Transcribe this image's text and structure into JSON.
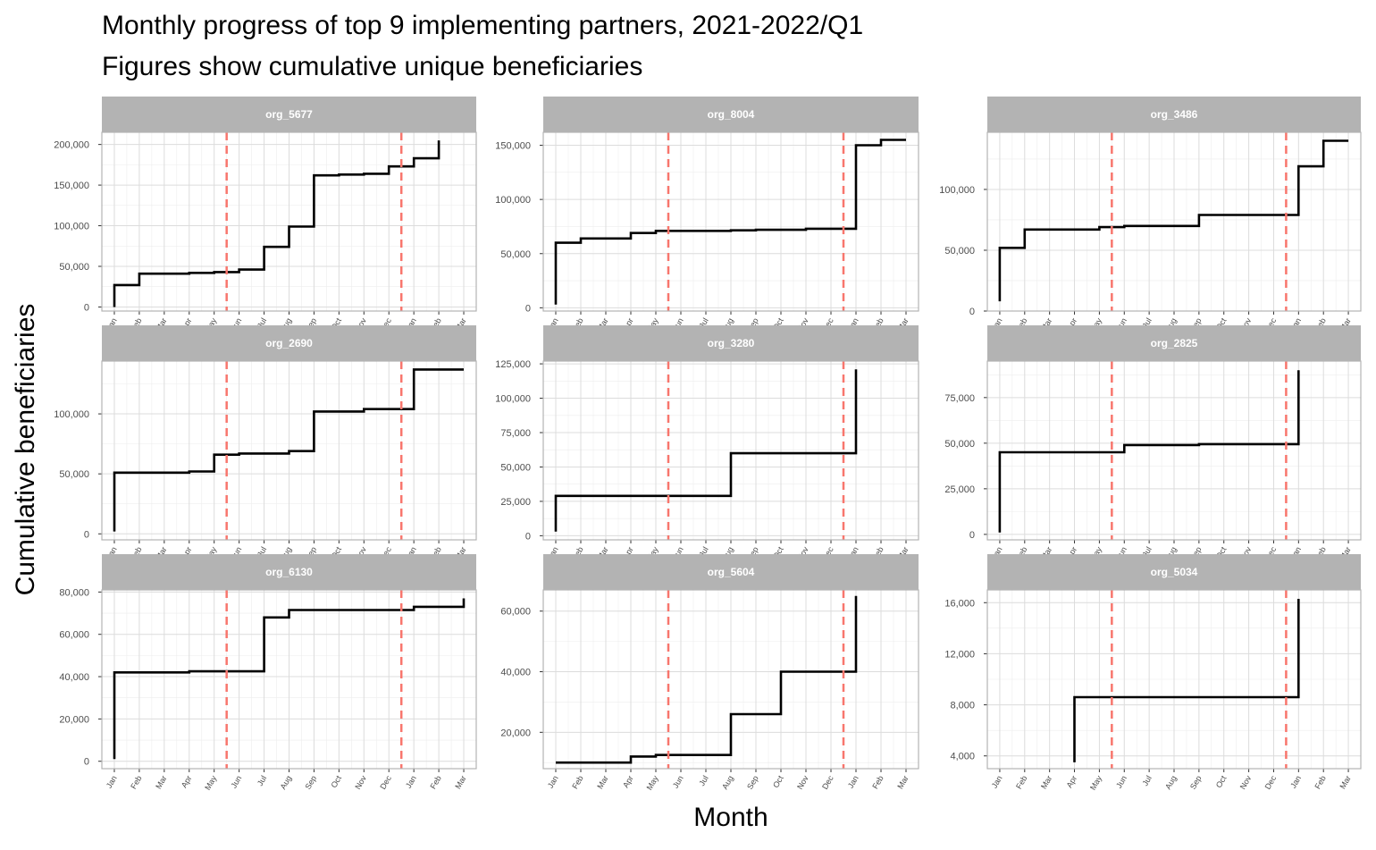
{
  "chart_data": {
    "type": "line",
    "step": true,
    "title": "Monthly progress of top 9 implementing partners, 2021-2022/Q1",
    "subtitle": "Figures show cumulative unique beneficiaries",
    "xlabel": "Month",
    "ylabel": "Cumulative beneficiaries",
    "x_ticks": [
      "Jan",
      "Feb",
      "Mar",
      "Apr",
      "May",
      "Jun",
      "Jul",
      "Aug",
      "Sep",
      "Oct",
      "Nov",
      "Dec",
      "Jan",
      "Feb",
      "Mar"
    ],
    "vlines": [
      "Jun 2021",
      "Jan 2022"
    ],
    "vline_color": "#F8766D",
    "line_color": "#000000",
    "strip_color": "#B3B3B3",
    "grid": true,
    "facets": [
      {
        "name": "org_5677",
        "ylim": [
          -5000,
          215000
        ],
        "y_ticks": [
          0,
          50000,
          100000,
          150000,
          200000
        ],
        "y_tick_labels": [
          "0",
          "50,000",
          "100,000",
          "150,000",
          "200,000"
        ],
        "points": [
          [
            0,
            0
          ],
          [
            0,
            27000
          ],
          [
            1,
            27000
          ],
          [
            1,
            41000
          ],
          [
            3,
            41000
          ],
          [
            3,
            42000
          ],
          [
            4,
            42000
          ],
          [
            4,
            43000
          ],
          [
            5,
            43000
          ],
          [
            5,
            46000
          ],
          [
            6,
            46000
          ],
          [
            6,
            74000
          ],
          [
            7,
            74000
          ],
          [
            7,
            99000
          ],
          [
            8,
            99000
          ],
          [
            8,
            162000
          ],
          [
            9,
            162000
          ],
          [
            9,
            163000
          ],
          [
            10,
            163000
          ],
          [
            10,
            164000
          ],
          [
            11,
            164000
          ],
          [
            11,
            173000
          ],
          [
            12,
            173000
          ],
          [
            12,
            183000
          ],
          [
            13,
            183000
          ],
          [
            13,
            205000
          ]
        ]
      },
      {
        "name": "org_8004",
        "ylim": [
          -3000,
          162000
        ],
        "y_ticks": [
          0,
          50000,
          100000,
          150000
        ],
        "y_tick_labels": [
          "0",
          "50,000",
          "100,000",
          "150,000"
        ],
        "points": [
          [
            0,
            3000
          ],
          [
            0,
            60000
          ],
          [
            1,
            60000
          ],
          [
            1,
            64000
          ],
          [
            3,
            64000
          ],
          [
            3,
            69000
          ],
          [
            4,
            69000
          ],
          [
            4,
            71000
          ],
          [
            7,
            71000
          ],
          [
            7,
            71500
          ],
          [
            8,
            71500
          ],
          [
            8,
            72000
          ],
          [
            10,
            72000
          ],
          [
            10,
            73000
          ],
          [
            12,
            73000
          ],
          [
            12,
            150000
          ],
          [
            13,
            150000
          ],
          [
            13,
            155000
          ],
          [
            14,
            155000
          ]
        ]
      },
      {
        "name": "org_3486",
        "ylim": [
          0,
          147000
        ],
        "y_ticks": [
          0,
          50000,
          100000
        ],
        "y_tick_labels": [
          "0",
          "50,000",
          "100,000"
        ],
        "points": [
          [
            0,
            8000
          ],
          [
            0,
            52000
          ],
          [
            1,
            52000
          ],
          [
            1,
            67000
          ],
          [
            4,
            67000
          ],
          [
            4,
            69000
          ],
          [
            5,
            69000
          ],
          [
            5,
            70000
          ],
          [
            8,
            70000
          ],
          [
            8,
            79000
          ],
          [
            12,
            79000
          ],
          [
            12,
            119000
          ],
          [
            13,
            119000
          ],
          [
            13,
            140000
          ],
          [
            14,
            140000
          ]
        ]
      },
      {
        "name": "org_2690",
        "ylim": [
          -5000,
          144000
        ],
        "y_ticks": [
          0,
          50000,
          100000
        ],
        "y_tick_labels": [
          "0",
          "50,000",
          "100,000"
        ],
        "points": [
          [
            0,
            2000
          ],
          [
            0,
            51000
          ],
          [
            3,
            51000
          ],
          [
            3,
            52000
          ],
          [
            4,
            52000
          ],
          [
            4,
            66000
          ],
          [
            5,
            66000
          ],
          [
            5,
            67000
          ],
          [
            7,
            67000
          ],
          [
            7,
            69000
          ],
          [
            8,
            69000
          ],
          [
            8,
            102000
          ],
          [
            10,
            102000
          ],
          [
            10,
            104000
          ],
          [
            12,
            104000
          ],
          [
            12,
            137000
          ],
          [
            14,
            137000
          ]
        ]
      },
      {
        "name": "org_3280",
        "ylim": [
          -3000,
          127000
        ],
        "y_ticks": [
          0,
          25000,
          50000,
          75000,
          100000,
          125000
        ],
        "y_tick_labels": [
          "0",
          "25,000",
          "50,000",
          "75,000",
          "100,000",
          "125,000"
        ],
        "points": [
          [
            0,
            3000
          ],
          [
            0,
            29000
          ],
          [
            7,
            29000
          ],
          [
            7,
            60000
          ],
          [
            12,
            60000
          ],
          [
            12,
            121000
          ]
        ]
      },
      {
        "name": "org_2825",
        "ylim": [
          -3000,
          95000
        ],
        "y_ticks": [
          0,
          25000,
          50000,
          75000
        ],
        "y_tick_labels": [
          "0",
          "25,000",
          "50,000",
          "75,000"
        ],
        "points": [
          [
            0,
            1000
          ],
          [
            0,
            45000
          ],
          [
            5,
            45000
          ],
          [
            5,
            49000
          ],
          [
            8,
            49000
          ],
          [
            8,
            49500
          ],
          [
            12,
            49500
          ],
          [
            12,
            90000
          ]
        ]
      },
      {
        "name": "org_6130",
        "ylim": [
          -3500,
          81000
        ],
        "y_ticks": [
          0,
          20000,
          40000,
          60000,
          80000
        ],
        "y_tick_labels": [
          "0",
          "20,000",
          "40,000",
          "60,000",
          "80,000"
        ],
        "points": [
          [
            0,
            1000
          ],
          [
            0,
            42000
          ],
          [
            3,
            42000
          ],
          [
            3,
            42500
          ],
          [
            6,
            42500
          ],
          [
            6,
            68000
          ],
          [
            7,
            68000
          ],
          [
            7,
            71500
          ],
          [
            12,
            71500
          ],
          [
            12,
            73000
          ],
          [
            14,
            73000
          ],
          [
            14,
            77000
          ]
        ]
      },
      {
        "name": "org_5604",
        "ylim": [
          8000,
          67000
        ],
        "y_ticks": [
          20000,
          40000,
          60000
        ],
        "y_tick_labels": [
          "20,000",
          "40,000",
          "60,000"
        ],
        "points": [
          [
            0,
            10000
          ],
          [
            3,
            10000
          ],
          [
            3,
            12000
          ],
          [
            4,
            12000
          ],
          [
            4,
            12500
          ],
          [
            7,
            12500
          ],
          [
            7,
            26000
          ],
          [
            9,
            26000
          ],
          [
            9,
            40000
          ],
          [
            12,
            40000
          ],
          [
            12,
            65000
          ]
        ]
      },
      {
        "name": "org_5034",
        "ylim": [
          3000,
          17000
        ],
        "y_ticks": [
          4000,
          8000,
          12000,
          16000
        ],
        "y_tick_labels": [
          "4,000",
          "8,000",
          "12,000",
          "16,000"
        ],
        "points": [
          [
            3,
            3500
          ],
          [
            3,
            8600
          ],
          [
            12,
            8600
          ],
          [
            12,
            16300
          ]
        ]
      }
    ]
  }
}
